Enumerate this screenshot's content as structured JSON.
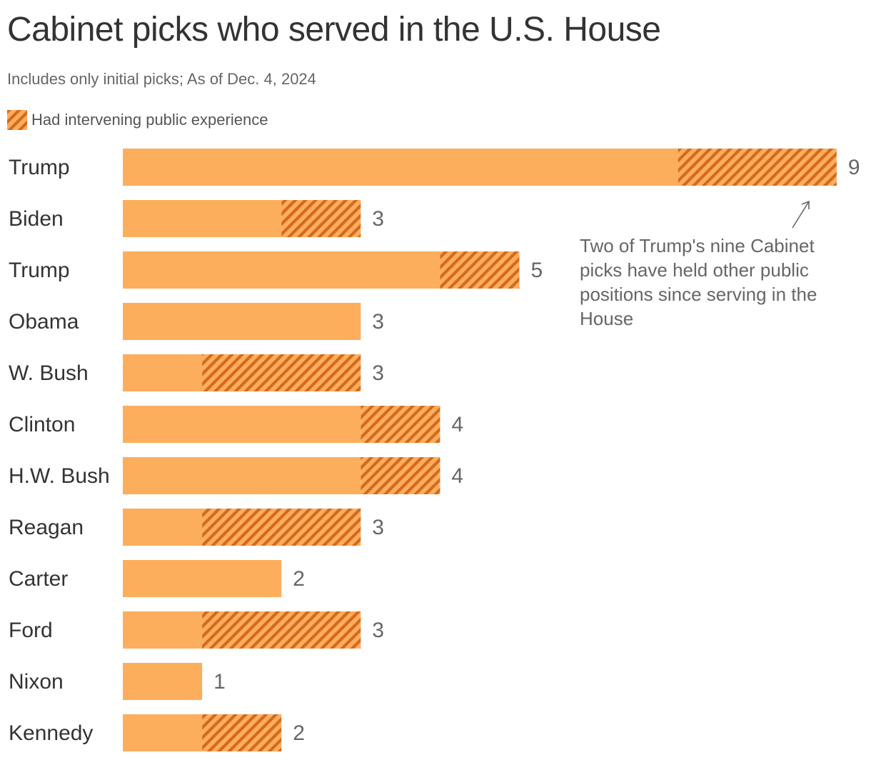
{
  "title": "Cabinet picks who served in the U.S. House",
  "subtitle": "Includes only initial picks; As of Dec. 4, 2024",
  "legend": {
    "hatched_label": "Had intervening public experience"
  },
  "annotation": {
    "text": "Two of Trump's nine Cabinet picks have held other public positions since serving in the House"
  },
  "colors": {
    "bar": "#fdae5c",
    "hatch_stripe": "#d5691f",
    "text_dark": "#333333",
    "text_muted": "#666666"
  },
  "chart_data": {
    "type": "bar",
    "orientation": "horizontal",
    "stacked": true,
    "categories": [
      "Trump",
      "Biden",
      "Trump",
      "Obama",
      "W. Bush",
      "Clinton",
      "H.W. Bush",
      "Reagan",
      "Carter",
      "Ford",
      "Nixon",
      "Kennedy"
    ],
    "totals": [
      9,
      3,
      5,
      3,
      3,
      4,
      4,
      3,
      2,
      3,
      1,
      2
    ],
    "series": [
      {
        "values": [
          7,
          2,
          4,
          3,
          1,
          3,
          3,
          1,
          2,
          1,
          1,
          1
        ]
      },
      {
        "name": "Had intervening public experience",
        "values": [
          2,
          1,
          1,
          0,
          2,
          1,
          1,
          2,
          0,
          2,
          0,
          1
        ]
      }
    ],
    "xlim": [
      0,
      9
    ],
    "grid": false,
    "legend_position": "top-left"
  }
}
